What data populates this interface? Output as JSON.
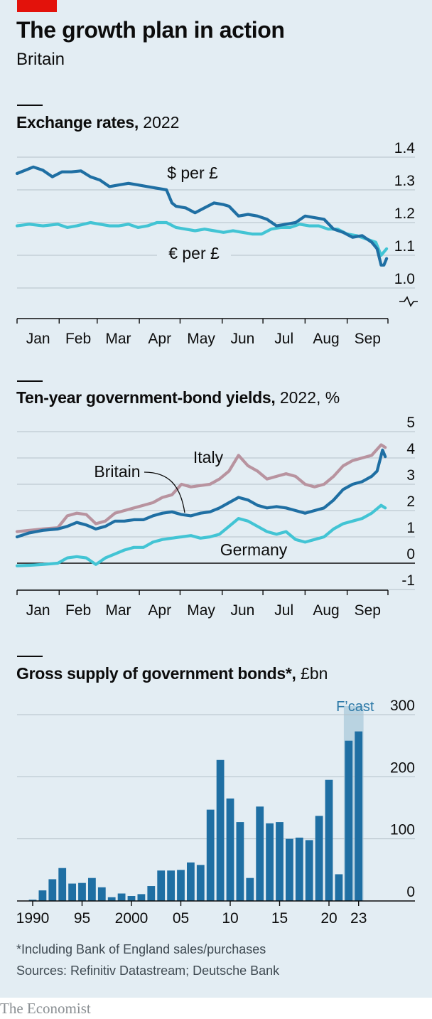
{
  "header": {
    "title": "The growth plan in action",
    "subtitle": "Britain"
  },
  "charts": {
    "fx": {
      "title_bold": "Exchange rates,",
      "title_rest": " 2022"
    },
    "yields": {
      "title_bold": "Ten-year government-bond yields,",
      "title_rest": " 2022, %"
    },
    "supply": {
      "title_bold": "Gross supply of government bonds*,",
      "title_rest": " £bn"
    }
  },
  "footer": {
    "footnote": "*Including Bank of England sales/purchases",
    "sources": "Sources: Refinitiv Datastream; Deutsche Bank",
    "brand": "The Economist"
  },
  "colors": {
    "panel": "#e3edf3",
    "dark_blue": "#1f6fa3",
    "light_blue": "#42c4d4",
    "mauve": "#b8939f",
    "bar": "#1f6fa3",
    "forecast_band": "#b9d3e1",
    "grid": "#b5c1c9"
  },
  "chart_data": [
    {
      "type": "line",
      "title": "Exchange rates, 2022",
      "x_axis": {
        "type": "date",
        "tick_labels": [
          "Jan",
          "Feb",
          "Mar",
          "Apr",
          "May",
          "Jun",
          "Jul",
          "Aug",
          "Sep"
        ]
      },
      "y_axis": {
        "ticks": [
          1.0,
          1.1,
          1.2,
          1.3,
          1.4
        ],
        "ylim": [
          1.0,
          1.4
        ],
        "broken_axis_below": true
      },
      "grid": true,
      "series": [
        {
          "name": "$ per £",
          "color": "#1f6fa3",
          "points": [
            [
              "2022-01-01",
              1.35
            ],
            [
              "2022-01-07",
              1.36
            ],
            [
              "2022-01-13",
              1.37
            ],
            [
              "2022-01-20",
              1.36
            ],
            [
              "2022-01-27",
              1.34
            ],
            [
              "2022-02-03",
              1.355
            ],
            [
              "2022-02-10",
              1.355
            ],
            [
              "2022-02-17",
              1.358
            ],
            [
              "2022-02-24",
              1.34
            ],
            [
              "2022-03-03",
              1.33
            ],
            [
              "2022-03-10",
              1.31
            ],
            [
              "2022-03-17",
              1.315
            ],
            [
              "2022-03-24",
              1.32
            ],
            [
              "2022-03-31",
              1.315
            ],
            [
              "2022-04-07",
              1.31
            ],
            [
              "2022-04-14",
              1.305
            ],
            [
              "2022-04-21",
              1.3
            ],
            [
              "2022-04-25",
              1.26
            ],
            [
              "2022-04-28",
              1.25
            ],
            [
              "2022-05-05",
              1.245
            ],
            [
              "2022-05-12",
              1.23
            ],
            [
              "2022-05-19",
              1.245
            ],
            [
              "2022-05-26",
              1.26
            ],
            [
              "2022-06-02",
              1.255
            ],
            [
              "2022-06-06",
              1.25
            ],
            [
              "2022-06-13",
              1.22
            ],
            [
              "2022-06-20",
              1.225
            ],
            [
              "2022-06-27",
              1.22
            ],
            [
              "2022-07-04",
              1.21
            ],
            [
              "2022-07-11",
              1.19
            ],
            [
              "2022-07-18",
              1.195
            ],
            [
              "2022-07-25",
              1.2
            ],
            [
              "2022-08-01",
              1.22
            ],
            [
              "2022-08-08",
              1.215
            ],
            [
              "2022-08-15",
              1.21
            ],
            [
              "2022-08-22",
              1.18
            ],
            [
              "2022-08-29",
              1.17
            ],
            [
              "2022-09-05",
              1.155
            ],
            [
              "2022-09-12",
              1.16
            ],
            [
              "2022-09-19",
              1.14
            ],
            [
              "2022-09-23",
              1.12
            ],
            [
              "2022-09-26",
              1.07
            ],
            [
              "2022-09-28",
              1.07
            ],
            [
              "2022-09-30",
              1.09
            ]
          ]
        },
        {
          "name": "€ per £",
          "color": "#42c4d4",
          "points": [
            [
              "2022-01-01",
              1.19
            ],
            [
              "2022-01-10",
              1.195
            ],
            [
              "2022-01-20",
              1.19
            ],
            [
              "2022-01-31",
              1.195
            ],
            [
              "2022-02-07",
              1.185
            ],
            [
              "2022-02-14",
              1.19
            ],
            [
              "2022-02-24",
              1.2
            ],
            [
              "2022-03-03",
              1.195
            ],
            [
              "2022-03-10",
              1.19
            ],
            [
              "2022-03-17",
              1.19
            ],
            [
              "2022-03-24",
              1.195
            ],
            [
              "2022-03-31",
              1.185
            ],
            [
              "2022-04-07",
              1.19
            ],
            [
              "2022-04-14",
              1.2
            ],
            [
              "2022-04-21",
              1.2
            ],
            [
              "2022-04-28",
              1.185
            ],
            [
              "2022-05-05",
              1.18
            ],
            [
              "2022-05-12",
              1.175
            ],
            [
              "2022-05-19",
              1.18
            ],
            [
              "2022-05-26",
              1.175
            ],
            [
              "2022-06-02",
              1.17
            ],
            [
              "2022-06-09",
              1.175
            ],
            [
              "2022-06-16",
              1.17
            ],
            [
              "2022-06-23",
              1.165
            ],
            [
              "2022-06-30",
              1.165
            ],
            [
              "2022-07-07",
              1.18
            ],
            [
              "2022-07-14",
              1.185
            ],
            [
              "2022-07-21",
              1.185
            ],
            [
              "2022-07-28",
              1.195
            ],
            [
              "2022-08-04",
              1.19
            ],
            [
              "2022-08-11",
              1.19
            ],
            [
              "2022-08-18",
              1.18
            ],
            [
              "2022-08-25",
              1.18
            ],
            [
              "2022-09-01",
              1.165
            ],
            [
              "2022-09-08",
              1.16
            ],
            [
              "2022-09-15",
              1.15
            ],
            [
              "2022-09-22",
              1.14
            ],
            [
              "2022-09-26",
              1.1
            ],
            [
              "2022-09-30",
              1.12
            ]
          ]
        }
      ]
    },
    {
      "type": "line",
      "title": "Ten-year government-bond yields, 2022, %",
      "x_axis": {
        "type": "date",
        "tick_labels": [
          "Jan",
          "Feb",
          "Mar",
          "Apr",
          "May",
          "Jun",
          "Jul",
          "Aug",
          "Sep"
        ]
      },
      "y_axis": {
        "ticks": [
          -1,
          0,
          1,
          2,
          3,
          4,
          5
        ],
        "ylim": [
          -1,
          5
        ]
      },
      "grid": true,
      "series": [
        {
          "name": "Italy",
          "color": "#b8939f",
          "points": [
            [
              "2022-01-01",
              1.2
            ],
            [
              "2022-01-10",
              1.25
            ],
            [
              "2022-01-20",
              1.3
            ],
            [
              "2022-01-31",
              1.35
            ],
            [
              "2022-02-07",
              1.8
            ],
            [
              "2022-02-14",
              1.9
            ],
            [
              "2022-02-21",
              1.85
            ],
            [
              "2022-02-28",
              1.5
            ],
            [
              "2022-03-07",
              1.6
            ],
            [
              "2022-03-14",
              1.9
            ],
            [
              "2022-03-21",
              2.0
            ],
            [
              "2022-03-28",
              2.1
            ],
            [
              "2022-04-04",
              2.2
            ],
            [
              "2022-04-11",
              2.3
            ],
            [
              "2022-04-18",
              2.5
            ],
            [
              "2022-04-25",
              2.6
            ],
            [
              "2022-05-02",
              3.0
            ],
            [
              "2022-05-09",
              2.9
            ],
            [
              "2022-05-16",
              2.95
            ],
            [
              "2022-05-23",
              3.0
            ],
            [
              "2022-05-30",
              3.2
            ],
            [
              "2022-06-06",
              3.5
            ],
            [
              "2022-06-13",
              4.1
            ],
            [
              "2022-06-20",
              3.7
            ],
            [
              "2022-06-27",
              3.5
            ],
            [
              "2022-07-04",
              3.2
            ],
            [
              "2022-07-11",
              3.3
            ],
            [
              "2022-07-18",
              3.4
            ],
            [
              "2022-07-25",
              3.3
            ],
            [
              "2022-08-01",
              3.0
            ],
            [
              "2022-08-08",
              2.9
            ],
            [
              "2022-08-15",
              3.0
            ],
            [
              "2022-08-22",
              3.3
            ],
            [
              "2022-08-29",
              3.7
            ],
            [
              "2022-09-05",
              3.9
            ],
            [
              "2022-09-12",
              4.0
            ],
            [
              "2022-09-19",
              4.1
            ],
            [
              "2022-09-26",
              4.5
            ],
            [
              "2022-09-29",
              4.4
            ]
          ]
        },
        {
          "name": "Britain",
          "color": "#1f6fa3",
          "points": [
            [
              "2022-01-01",
              1.0
            ],
            [
              "2022-01-10",
              1.15
            ],
            [
              "2022-01-20",
              1.25
            ],
            [
              "2022-01-31",
              1.3
            ],
            [
              "2022-02-07",
              1.4
            ],
            [
              "2022-02-14",
              1.55
            ],
            [
              "2022-02-21",
              1.45
            ],
            [
              "2022-02-28",
              1.3
            ],
            [
              "2022-03-07",
              1.4
            ],
            [
              "2022-03-14",
              1.6
            ],
            [
              "2022-03-21",
              1.6
            ],
            [
              "2022-03-28",
              1.65
            ],
            [
              "2022-04-04",
              1.65
            ],
            [
              "2022-04-11",
              1.8
            ],
            [
              "2022-04-18",
              1.9
            ],
            [
              "2022-04-25",
              1.95
            ],
            [
              "2022-05-02",
              1.85
            ],
            [
              "2022-05-09",
              1.8
            ],
            [
              "2022-05-16",
              1.9
            ],
            [
              "2022-05-23",
              1.95
            ],
            [
              "2022-05-30",
              2.1
            ],
            [
              "2022-06-06",
              2.3
            ],
            [
              "2022-06-13",
              2.5
            ],
            [
              "2022-06-20",
              2.4
            ],
            [
              "2022-06-27",
              2.2
            ],
            [
              "2022-07-04",
              2.1
            ],
            [
              "2022-07-11",
              2.15
            ],
            [
              "2022-07-18",
              2.1
            ],
            [
              "2022-07-25",
              2.0
            ],
            [
              "2022-08-01",
              1.9
            ],
            [
              "2022-08-08",
              2.0
            ],
            [
              "2022-08-15",
              2.1
            ],
            [
              "2022-08-22",
              2.4
            ],
            [
              "2022-08-29",
              2.8
            ],
            [
              "2022-09-05",
              3.0
            ],
            [
              "2022-09-12",
              3.1
            ],
            [
              "2022-09-19",
              3.3
            ],
            [
              "2022-09-23",
              3.5
            ],
            [
              "2022-09-27",
              4.3
            ],
            [
              "2022-09-29",
              4.05
            ]
          ]
        },
        {
          "name": "Germany",
          "color": "#42c4d4",
          "points": [
            [
              "2022-01-01",
              -0.1
            ],
            [
              "2022-01-10",
              -0.08
            ],
            [
              "2022-01-20",
              -0.05
            ],
            [
              "2022-01-31",
              0.0
            ],
            [
              "2022-02-07",
              0.2
            ],
            [
              "2022-02-14",
              0.25
            ],
            [
              "2022-02-21",
              0.2
            ],
            [
              "2022-02-28",
              -0.05
            ],
            [
              "2022-03-07",
              0.2
            ],
            [
              "2022-03-14",
              0.35
            ],
            [
              "2022-03-21",
              0.5
            ],
            [
              "2022-03-28",
              0.6
            ],
            [
              "2022-04-04",
              0.6
            ],
            [
              "2022-04-11",
              0.8
            ],
            [
              "2022-04-18",
              0.9
            ],
            [
              "2022-04-25",
              0.95
            ],
            [
              "2022-05-02",
              1.0
            ],
            [
              "2022-05-09",
              1.05
            ],
            [
              "2022-05-16",
              0.95
            ],
            [
              "2022-05-23",
              1.0
            ],
            [
              "2022-05-30",
              1.1
            ],
            [
              "2022-06-06",
              1.4
            ],
            [
              "2022-06-13",
              1.7
            ],
            [
              "2022-06-20",
              1.6
            ],
            [
              "2022-06-27",
              1.4
            ],
            [
              "2022-07-04",
              1.2
            ],
            [
              "2022-07-11",
              1.1
            ],
            [
              "2022-07-18",
              1.2
            ],
            [
              "2022-07-25",
              0.9
            ],
            [
              "2022-08-01",
              0.8
            ],
            [
              "2022-08-08",
              0.9
            ],
            [
              "2022-08-15",
              1.0
            ],
            [
              "2022-08-22",
              1.3
            ],
            [
              "2022-08-29",
              1.5
            ],
            [
              "2022-09-05",
              1.6
            ],
            [
              "2022-09-12",
              1.7
            ],
            [
              "2022-09-19",
              1.9
            ],
            [
              "2022-09-26",
              2.2
            ],
            [
              "2022-09-29",
              2.1
            ]
          ]
        }
      ]
    },
    {
      "type": "bar",
      "title": "Gross supply of government bonds*, £bn",
      "categories": [
        1990,
        1991,
        1992,
        1993,
        1994,
        1995,
        1996,
        1997,
        1998,
        1999,
        2000,
        2001,
        2002,
        2003,
        2004,
        2005,
        2006,
        2007,
        2008,
        2009,
        2010,
        2011,
        2012,
        2013,
        2014,
        2015,
        2016,
        2017,
        2018,
        2019,
        2020,
        2021,
        2022,
        2023
      ],
      "x_tick_labels": [
        {
          "at": 1990,
          "label": "1990"
        },
        {
          "at": 1995,
          "label": "95"
        },
        {
          "at": 2000,
          "label": "2000"
        },
        {
          "at": 2005,
          "label": "05"
        },
        {
          "at": 2010,
          "label": "10"
        },
        {
          "at": 2015,
          "label": "15"
        },
        {
          "at": 2020,
          "label": "20"
        },
        {
          "at": 2023,
          "label": "23"
        }
      ],
      "values": [
        2,
        17,
        35,
        53,
        28,
        29,
        37,
        22,
        6,
        12,
        8,
        11,
        24,
        49,
        49,
        50,
        62,
        58,
        147,
        227,
        165,
        127,
        37,
        152,
        125,
        127,
        100,
        102,
        98,
        137,
        195,
        43,
        258,
        273
      ],
      "forecast": {
        "label": "F’cast",
        "from": 2022,
        "to": 2023
      },
      "y_axis": {
        "ticks": [
          0,
          100,
          200,
          300
        ],
        "ylim": [
          0,
          300
        ]
      },
      "grid": true
    }
  ]
}
